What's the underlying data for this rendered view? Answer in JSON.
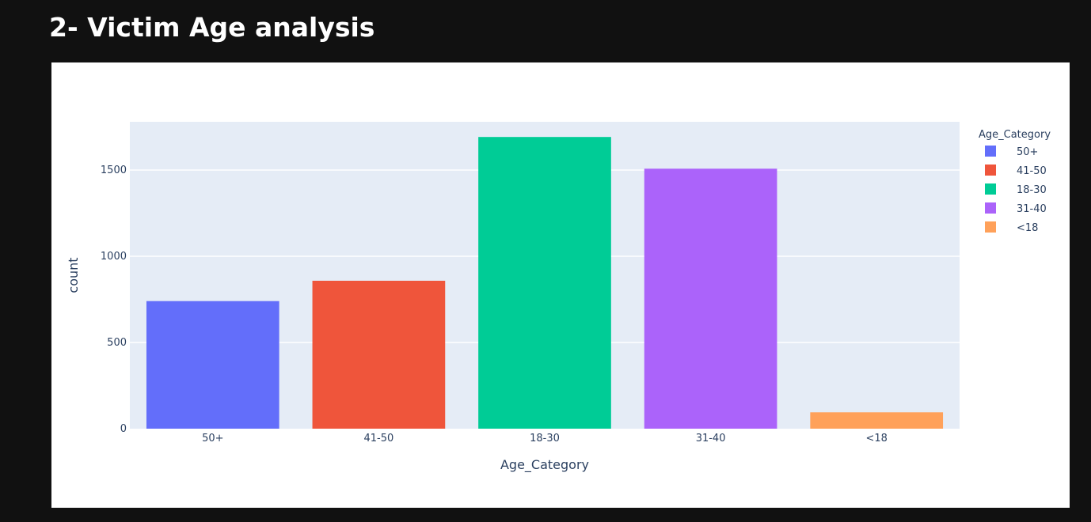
{
  "page": {
    "heading": "2- Victim Age analysis"
  },
  "chart_data": {
    "type": "bar",
    "categories": [
      "50+",
      "41-50",
      "18-30",
      "31-40",
      "<18"
    ],
    "values": [
      740,
      858,
      1692,
      1508,
      95
    ],
    "colors": [
      "#636efa",
      "#ef553b",
      "#00cc96",
      "#ab63fa",
      "#ffa15a"
    ],
    "xlabel": "Age_Category",
    "ylabel": "count",
    "ylim": [
      0,
      1780
    ],
    "yticks": [
      0,
      500,
      1000,
      1500
    ],
    "legend": {
      "title": "Age_Category",
      "position": "right"
    },
    "grid": true,
    "plot_background": "#e5ecf6"
  }
}
